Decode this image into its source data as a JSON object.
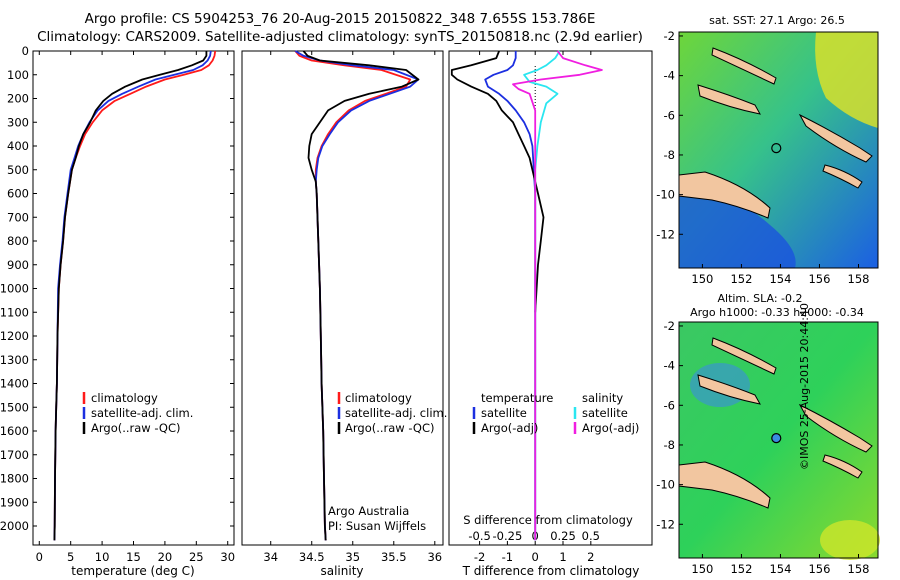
{
  "title": {
    "line1": "Argo profile: CS 5904253_76 20-Aug-2015 20150822_348 7.655S 153.786E",
    "line2": "Climatology: CARS2009. Satellite-adjusted climatology: synTS_20150818.nc (2.9d earlier)"
  },
  "colors": {
    "climatology": "#ff1a1a",
    "satellite": "#1c2fe0",
    "argo": "#000000",
    "sal_satellite": "#2ae6f0",
    "sal_argo": "#f01ee0"
  },
  "depth_axis": {
    "ylim": [
      0,
      2080
    ],
    "ticks": [
      0,
      100,
      200,
      300,
      400,
      500,
      600,
      700,
      800,
      900,
      1000,
      1100,
      1200,
      1300,
      1400,
      1500,
      1600,
      1700,
      1800,
      1900,
      2000
    ]
  },
  "legend": {
    "climatology": "climatology",
    "satellite_adj": "satellite-adj. clim.",
    "argo": "Argo(..raw -QC)",
    "diff_temp_header": "temperature",
    "diff_sal_header": "salinity",
    "diff_satellite": "satellite",
    "diff_argo": "Argo(-adj)"
  },
  "panels": {
    "temperature": {
      "xlabel": "temperature (deg C)",
      "xlim": [
        -1,
        31
      ],
      "ticks": [
        0,
        5,
        10,
        15,
        20,
        25,
        30
      ]
    },
    "salinity": {
      "xlabel": "salinity",
      "xlim": [
        33.65,
        36.1
      ],
      "ticks": [
        "34",
        "34.5",
        "35",
        "35.5",
        "36"
      ],
      "annotation1": "Argo Australia",
      "annotation2": "PI: Susan Wijffels"
    },
    "difference": {
      "xlabel_bottom": "T difference from climatology",
      "xlabel_top": "S difference from climatology",
      "xlim": [
        -3.1,
        4.2
      ],
      "ticks_bottom": [
        "-2",
        "-1",
        "0",
        "1",
        "2"
      ],
      "ticks_top": [
        "-0.5",
        "-0.25",
        "0",
        "0.25",
        "0.5"
      ]
    }
  },
  "maps": {
    "sst": {
      "title": "sat. SST: 27.1  Argo: 26.5"
    },
    "sla": {
      "title1": "Altim. SLA: -0.2",
      "title2": "Argo h1000: -0.33  h2000: -0.34"
    },
    "lon_ticks": [
      "150",
      "152",
      "154",
      "156",
      "158"
    ],
    "lat_ticks": [
      "-2",
      "-4",
      "-6",
      "-8",
      "-10",
      "-12"
    ],
    "float_position": {
      "lon": 153.786,
      "lat": -7.655
    }
  },
  "credit": "©IMOS 25-Aug-2015 20:44:40",
  "chart_data": [
    {
      "type": "line",
      "title": "",
      "xlabel": "temperature (deg C)",
      "ylabel": "",
      "ylim": [
        0,
        2080
      ],
      "xlim": [
        -1,
        31
      ],
      "series": [
        {
          "name": "climatology",
          "x": [
            28.0,
            27.9,
            27.6,
            27.0,
            25.8,
            23.0,
            20.0,
            17.0,
            14.5,
            12.0,
            10.0,
            8.5,
            7.3,
            6.5,
            5.8,
            5.2,
            4.6,
            4.1,
            3.8,
            3.4,
            3.1,
            2.9,
            2.8,
            2.7,
            2.6,
            2.5,
            2.45,
            2.4
          ],
          "y": [
            0,
            20,
            40,
            60,
            80,
            100,
            120,
            150,
            180,
            210,
            250,
            300,
            350,
            400,
            450,
            500,
            600,
            700,
            800,
            900,
            1000,
            1200,
            1400,
            1500,
            1600,
            1800,
            2000,
            2060
          ]
        },
        {
          "name": "satellite-adj. clim.",
          "x": [
            27.3,
            27.2,
            26.8,
            26.0,
            24.5,
            21.5,
            18.5,
            15.8,
            13.2,
            11.0,
            9.3,
            8.0,
            7.0,
            6.2,
            5.6,
            5.0,
            4.5,
            4.0,
            3.7,
            3.3,
            3.0,
            2.9,
            2.8,
            2.7,
            2.6,
            2.5,
            2.45,
            2.4
          ],
          "y": [
            0,
            20,
            40,
            60,
            80,
            100,
            120,
            150,
            180,
            210,
            250,
            300,
            350,
            400,
            450,
            500,
            600,
            700,
            800,
            900,
            1000,
            1200,
            1400,
            1500,
            1600,
            1800,
            2000,
            2060
          ]
        },
        {
          "name": "Argo(..raw -QC)",
          "x": [
            26.6,
            26.6,
            26.1,
            24.3,
            22.1,
            19.2,
            16.4,
            13.7,
            11.6,
            10.2,
            9.0,
            8.1,
            7.0,
            6.3,
            5.8,
            5.2,
            4.6,
            4.1,
            3.8,
            3.4,
            3.1,
            2.9,
            2.8,
            2.7,
            2.6,
            2.5,
            2.45,
            2.4
          ],
          "y": [
            0,
            20,
            40,
            60,
            80,
            100,
            120,
            150,
            180,
            210,
            250,
            300,
            350,
            400,
            450,
            500,
            600,
            700,
            800,
            900,
            1000,
            1200,
            1400,
            1500,
            1600,
            1800,
            2000,
            2060
          ]
        }
      ]
    },
    {
      "type": "line",
      "title": "",
      "xlabel": "salinity",
      "ylabel": "",
      "ylim": [
        0,
        2080
      ],
      "xlim": [
        33.65,
        36.1
      ],
      "series": [
        {
          "name": "climatology",
          "x": [
            34.3,
            34.35,
            34.5,
            34.9,
            35.35,
            35.7,
            35.65,
            35.4,
            35.15,
            34.95,
            34.8,
            34.7,
            34.62,
            34.57,
            34.55,
            34.55,
            34.56,
            34.57,
            34.58,
            34.59,
            34.6,
            34.61,
            34.62,
            34.63,
            34.64,
            34.65,
            34.66,
            34.67
          ],
          "y": [
            0,
            20,
            40,
            60,
            80,
            120,
            150,
            180,
            210,
            250,
            300,
            350,
            400,
            450,
            500,
            550,
            600,
            700,
            800,
            900,
            1000,
            1200,
            1400,
            1500,
            1600,
            1800,
            2000,
            2060
          ]
        },
        {
          "name": "satellite-adj. clim.",
          "x": [
            34.3,
            34.4,
            34.6,
            35.0,
            35.5,
            35.8,
            35.7,
            35.45,
            35.2,
            34.98,
            34.82,
            34.72,
            34.63,
            34.58,
            34.56,
            34.55,
            34.56,
            34.57,
            34.58,
            34.59,
            34.6,
            34.61,
            34.62,
            34.63,
            34.64,
            34.65,
            34.66,
            34.67
          ],
          "y": [
            0,
            20,
            40,
            60,
            80,
            120,
            150,
            180,
            210,
            250,
            300,
            350,
            400,
            450,
            500,
            550,
            600,
            700,
            800,
            900,
            1000,
            1200,
            1400,
            1500,
            1600,
            1800,
            2000,
            2060
          ]
        },
        {
          "name": "Argo(..raw -QC)",
          "x": [
            34.4,
            34.45,
            34.6,
            35.2,
            35.65,
            35.8,
            35.6,
            35.2,
            34.9,
            34.7,
            34.6,
            34.5,
            34.47,
            34.46,
            34.5,
            34.55,
            34.56,
            34.57,
            34.58,
            34.59,
            34.6,
            34.61,
            34.62,
            34.63,
            34.64,
            34.65,
            34.66,
            34.67
          ],
          "y": [
            0,
            20,
            40,
            60,
            80,
            120,
            150,
            180,
            210,
            250,
            300,
            350,
            400,
            450,
            500,
            550,
            600,
            700,
            800,
            900,
            1000,
            1200,
            1400,
            1500,
            1600,
            1800,
            2000,
            2060
          ]
        }
      ]
    },
    {
      "type": "line",
      "title": "",
      "xlabel": "T difference from climatology",
      "ylabel": "",
      "ylim": [
        0,
        2080
      ],
      "xlim": [
        -3.1,
        4.2
      ],
      "x2label": "S difference from climatology",
      "series": [
        {
          "name": "temperature satellite",
          "x": [
            -0.7,
            -0.7,
            -0.8,
            -1.0,
            -1.5,
            -1.8,
            -1.7,
            -1.3,
            -1.0,
            -0.7,
            -0.4,
            -0.2,
            -0.1,
            -0.05,
            0,
            0,
            0,
            0
          ],
          "y": [
            0,
            30,
            60,
            80,
            100,
            120,
            150,
            180,
            210,
            250,
            300,
            350,
            400,
            500,
            600,
            800,
            1200,
            2060
          ]
        },
        {
          "name": "temperature Argo(-adj)",
          "x": [
            -1.3,
            -1.4,
            -2.3,
            -3.0,
            -3.0,
            -2.8,
            -2.3,
            -1.7,
            -1.4,
            -1.2,
            -0.8,
            -0.6,
            -0.4,
            -0.2,
            -0.1,
            0.1,
            0.3,
            0.2,
            0.1,
            0.05,
            0
          ],
          "y": [
            0,
            30,
            60,
            80,
            100,
            120,
            150,
            180,
            210,
            250,
            300,
            350,
            400,
            450,
            500,
            600,
            700,
            800,
            900,
            1000,
            1100
          ]
        },
        {
          "name": "salinity satellite",
          "x": [
            0.22,
            0.18,
            0.1,
            0.02,
            -0.1,
            -0.05,
            0.1,
            0.2,
            0.1,
            0.05,
            0.02,
            0,
            0,
            0,
            0
          ],
          "y": [
            0,
            30,
            60,
            80,
            100,
            130,
            150,
            180,
            220,
            300,
            400,
            500,
            800,
            1200,
            2060
          ]
        },
        {
          "name": "salinity Argo(-adj)",
          "x": [
            0.2,
            0.25,
            0.45,
            0.6,
            0.4,
            0.05,
            -0.2,
            -0.15,
            -0.05,
            0,
            0,
            0,
            0,
            0,
            0,
            0,
            0,
            0
          ],
          "y": [
            0,
            30,
            60,
            80,
            100,
            120,
            140,
            160,
            180,
            250,
            300,
            400,
            500,
            600,
            700,
            800,
            1200,
            2060
          ]
        }
      ]
    },
    {
      "type": "heatmap",
      "title": "sat. SST: 27.1  Argo: 26.5",
      "xlabel": "",
      "ylabel": "",
      "xlim": [
        148.8,
        159.0
      ],
      "ylim": [
        -13.7,
        -1.8
      ],
      "float_position": {
        "lon": 153.786,
        "lat": -7.655
      }
    },
    {
      "type": "heatmap",
      "title": "Altim. SLA: -0.2 / Argo h1000: -0.33  h2000: -0.34",
      "xlabel": "",
      "ylabel": "",
      "xlim": [
        148.8,
        159.0
      ],
      "ylim": [
        -13.7,
        -1.8
      ],
      "float_position": {
        "lon": 153.786,
        "lat": -7.655
      }
    }
  ]
}
